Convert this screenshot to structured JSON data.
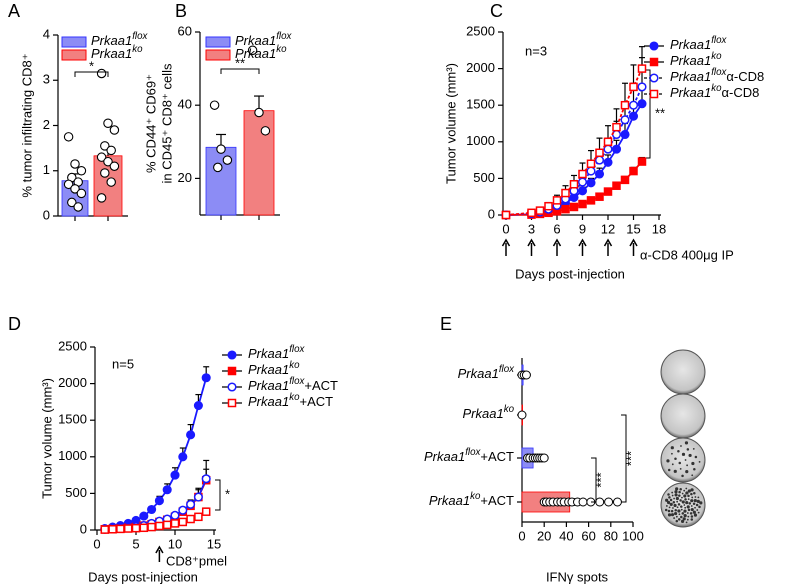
{
  "chart_data": [
    {
      "type": "bar",
      "panel": "A",
      "ylabel": "% tumor infiltrating CD8⁺",
      "ylim": [
        0,
        4
      ],
      "yticks": [
        0,
        1,
        2,
        3,
        4
      ],
      "significance": "*",
      "series": [
        {
          "name": "Prkaa1",
          "name_sup": "flox",
          "color": "#8c8cf5",
          "edge": "#3333ff",
          "values": [
            0.78
          ],
          "errors": [
            0.15
          ],
          "points": [
            1.75,
            1.15,
            1.0,
            0.85,
            0.75,
            0.7,
            0.6,
            0.5,
            0.3,
            0.2
          ]
        },
        {
          "name": "Prkaa1",
          "name_sup": "ko",
          "color": "#f28080",
          "edge": "#ff0000",
          "values": [
            1.33
          ],
          "errors": [
            0.2
          ],
          "points": [
            3.15,
            2.05,
            1.9,
            1.55,
            1.45,
            1.3,
            1.2,
            1.1,
            0.95,
            0.75,
            0.4
          ]
        }
      ]
    },
    {
      "type": "bar",
      "panel": "B",
      "ylabel": "% CD44⁺ CD69⁺",
      "ylabel2": "in CD45⁺ CD8⁺ cells",
      "ylim": [
        10,
        60
      ],
      "yticks": [
        20,
        40,
        60
      ],
      "significance": "**",
      "series": [
        {
          "name": "Prkaa1",
          "name_sup": "flox",
          "color": "#8c8cf5",
          "edge": "#3333ff",
          "values": [
            28.5
          ],
          "errors": [
            3.5
          ],
          "points": [
            40,
            28,
            25,
            23
          ]
        },
        {
          "name": "Prkaa1",
          "name_sup": "ko",
          "color": "#f28080",
          "edge": "#ff0000",
          "values": [
            38.5
          ],
          "errors": [
            4
          ],
          "points": [
            55,
            38,
            33
          ]
        }
      ]
    },
    {
      "type": "line",
      "panel": "C",
      "xlabel": "Days post-injection",
      "ylabel": "Tumor volume (mm³)",
      "n_label": "n=3",
      "significance": "**",
      "treatment_label": "α-CD8 400μg IP",
      "treatment_days": [
        0,
        3,
        6,
        9,
        12,
        15
      ],
      "xlim": [
        0,
        18
      ],
      "xticks": [
        0,
        3,
        6,
        9,
        12,
        15,
        18
      ],
      "ylim": [
        0,
        2500
      ],
      "yticks": [
        0,
        500,
        1000,
        1500,
        2000,
        2500
      ],
      "x": [
        0,
        3,
        4,
        5,
        6,
        7,
        8,
        9,
        10,
        11,
        12,
        13,
        14,
        15,
        16
      ],
      "series": [
        {
          "name": "Prkaa1",
          "name_sup": "flox",
          "color": "#1a1aff",
          "marker": "circle",
          "filled": true,
          "dashed": false,
          "values": [
            0,
            10,
            30,
            60,
            100,
            160,
            240,
            330,
            440,
            560,
            720,
            900,
            1100,
            1350,
            1520
          ],
          "errors": [
            0,
            5,
            10,
            15,
            20,
            30,
            40,
            50,
            60,
            80,
            100,
            120,
            150,
            180,
            200
          ]
        },
        {
          "name": "Prkaa1",
          "name_sup": "ko",
          "color": "#ff0000",
          "marker": "square",
          "filled": true,
          "dashed": false,
          "values": [
            0,
            5,
            15,
            30,
            50,
            80,
            110,
            150,
            200,
            250,
            320,
            400,
            480,
            600,
            730
          ],
          "errors": [
            0,
            3,
            5,
            8,
            10,
            12,
            15,
            20,
            25,
            30,
            35,
            40,
            45,
            50,
            55
          ]
        },
        {
          "name": "Prkaa1",
          "name_sup": "flox",
          "name_suffix": "α-CD8",
          "color": "#1a1aff",
          "marker": "circle",
          "filled": false,
          "dashed": true,
          "values": [
            0,
            20,
            40,
            80,
            130,
            220,
            330,
            450,
            600,
            750,
            900,
            1100,
            1300,
            1500,
            1750
          ],
          "errors": [
            0,
            10,
            15,
            20,
            30,
            50,
            60,
            80,
            100,
            120,
            150,
            180,
            220,
            300,
            400
          ]
        },
        {
          "name": "Prkaa1",
          "name_sup": "ko",
          "name_suffix": "α-CD8",
          "color": "#ff0000",
          "marker": "square",
          "filled": false,
          "dashed": true,
          "values": [
            0,
            30,
            60,
            120,
            200,
            300,
            420,
            560,
            700,
            850,
            1000,
            1200,
            1500,
            1750,
            2000
          ],
          "errors": [
            0,
            15,
            30,
            50,
            70,
            100,
            120,
            150,
            180,
            200,
            220,
            250,
            300,
            300,
            300
          ]
        }
      ]
    },
    {
      "type": "line",
      "panel": "D",
      "xlabel": "Days post-injection",
      "ylabel": "Tumor volume (mm³)",
      "n_label": "n=5",
      "significance": "*",
      "treatment_label": "CD8⁺pmel",
      "treatment_days": [
        8
      ],
      "xlim": [
        0,
        15
      ],
      "xticks": [
        0,
        5,
        10,
        15
      ],
      "ylim": [
        0,
        2500
      ],
      "yticks": [
        0,
        500,
        1000,
        1500,
        2000,
        2500
      ],
      "x": [
        1,
        2,
        3,
        4,
        5,
        6,
        7,
        8,
        9,
        10,
        11,
        12,
        13,
        14
      ],
      "series": [
        {
          "name": "Prkaa1",
          "name_sup": "flox",
          "color": "#1a1aff",
          "marker": "circle",
          "filled": true,
          "dashed": false,
          "values": [
            20,
            40,
            60,
            90,
            130,
            190,
            280,
            400,
            550,
            750,
            1000,
            1300,
            1700,
            2080
          ],
          "errors": [
            5,
            8,
            10,
            15,
            20,
            30,
            40,
            60,
            80,
            100,
            120,
            140,
            150,
            150
          ]
        },
        {
          "name": "Prkaa1",
          "name_sup": "ko",
          "color": "#ff0000",
          "marker": "square",
          "filled": true,
          "dashed": false,
          "values": [
            10,
            15,
            20,
            30,
            40,
            60,
            80,
            110,
            140,
            180,
            250,
            330,
            450,
            680
          ],
          "errors": [
            3,
            4,
            5,
            8,
            10,
            12,
            15,
            20,
            25,
            30,
            40,
            60,
            100,
            150
          ]
        },
        {
          "name": "Prkaa1",
          "name_sup": "flox",
          "name_suffix": "+ACT",
          "color": "#1a1aff",
          "marker": "circle",
          "filled": false,
          "dashed": false,
          "values": [
            10,
            15,
            25,
            30,
            45,
            60,
            90,
            120,
            150,
            200,
            270,
            350,
            450,
            700
          ],
          "errors": [
            3,
            4,
            5,
            8,
            10,
            12,
            15,
            20,
            25,
            30,
            40,
            60,
            120,
            250
          ]
        },
        {
          "name": "Prkaa1",
          "name_sup": "ko",
          "name_suffix": "+ACT",
          "color": "#ff0000",
          "marker": "square",
          "filled": false,
          "dashed": false,
          "values": [
            5,
            10,
            15,
            20,
            25,
            30,
            40,
            55,
            70,
            90,
            110,
            150,
            180,
            250
          ],
          "errors": [
            2,
            3,
            4,
            5,
            6,
            8,
            10,
            12,
            15,
            20,
            25,
            30,
            40,
            50
          ]
        }
      ]
    },
    {
      "type": "hbar",
      "panel": "E",
      "xlabel": "IFNγ spots",
      "xlim": [
        0,
        100
      ],
      "xticks": [
        0,
        20,
        40,
        60,
        80,
        100
      ],
      "significance": [
        "***",
        "***"
      ],
      "categories": [
        {
          "base": "Prkaa1",
          "sup": "flox"
        },
        {
          "base": "Prkaa1",
          "sup": "ko"
        },
        {
          "base": "Prkaa1",
          "sup": "flox",
          "suffix": "+ACT"
        },
        {
          "base": "Prkaa1",
          "sup": "ko",
          "suffix": "+ACT"
        }
      ],
      "colors": [
        "#8c8cf5",
        "#f28080",
        "#8c8cf5",
        "#f28080"
      ],
      "values": [
        1,
        0.5,
        10,
        43
      ],
      "errors": [
        1,
        0.5,
        3,
        4
      ],
      "points": [
        [
          0,
          2,
          4
        ],
        [
          0
        ],
        [
          5,
          7,
          10,
          12,
          14,
          16,
          18,
          20
        ],
        [
          20,
          22,
          25,
          28,
          32,
          35,
          38,
          42,
          45,
          50,
          55,
          62,
          70,
          78,
          86
        ]
      ]
    }
  ]
}
